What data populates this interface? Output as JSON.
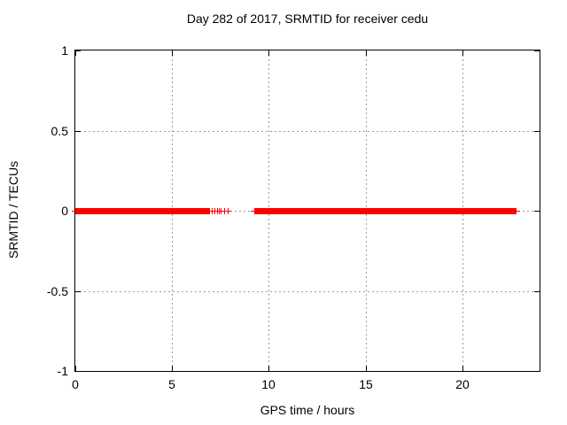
{
  "window": {
    "background": "#ffffff",
    "text_color": "#000000"
  },
  "chart_data": {
    "type": "scatter",
    "title": "Day 282 of 2017, SRMTID for receiver cedu",
    "xlabel": "GPS time / hours",
    "ylabel": "SRMTID / TECUs",
    "xlim": [
      0,
      24
    ],
    "ylim": [
      -1,
      1
    ],
    "x_ticks": [
      0,
      5,
      10,
      15,
      20
    ],
    "x_tick_labels": [
      "0",
      "5",
      "10",
      "15",
      "20"
    ],
    "y_ticks": [
      1,
      0.5,
      0,
      -0.5,
      -1
    ],
    "y_tick_labels": [
      "1",
      "0.5",
      "0",
      "-0.5",
      "-1"
    ],
    "grid": true,
    "legend_position": "none",
    "axis_color": "#000000",
    "grid_color": "#9c9c9c",
    "series": [
      {
        "name": "SRMTID",
        "color": "#ff0000",
        "marker": "plus",
        "y_value": 0,
        "segments_hours": [
          [
            0.0,
            6.95
          ],
          [
            9.27,
            22.82
          ]
        ],
        "sparse_points_hours": [
          7.05,
          7.18,
          7.32,
          7.42,
          7.52,
          7.68,
          7.86
        ]
      }
    ]
  }
}
